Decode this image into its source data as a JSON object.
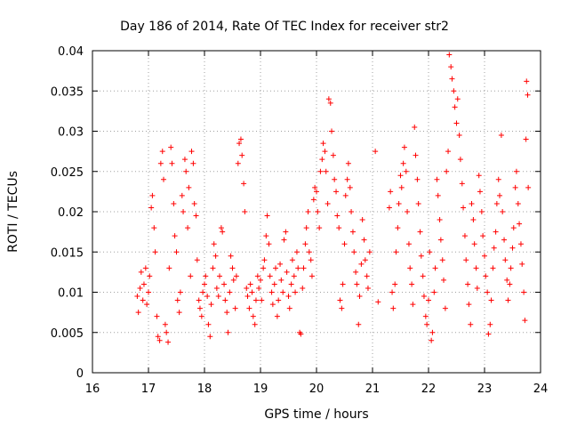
{
  "chart_data": {
    "type": "scatter",
    "title": "Day 186 of 2014, Rate Of TEC Index for receiver str2",
    "xlabel": "GPS time / hours",
    "ylabel": "ROTI / TECUs",
    "xlim": [
      16,
      24
    ],
    "ylim": [
      0,
      0.04
    ],
    "xticks": [
      16,
      17,
      18,
      19,
      20,
      21,
      22,
      23,
      24
    ],
    "xtick_labels": [
      "16",
      "17",
      "18",
      "19",
      "20",
      "21",
      "22",
      "23",
      "24"
    ],
    "yticks": [
      0,
      0.005,
      0.01,
      0.015,
      0.02,
      0.025,
      0.03,
      0.035,
      0.04
    ],
    "ytick_labels": [
      "0",
      "0.005",
      "0.01",
      "0.015",
      "0.02",
      "0.025",
      "0.03",
      "0.035",
      "0.04"
    ],
    "grid": true,
    "marker": "+",
    "series": [
      {
        "name": "ROTI",
        "color": "#ff0000",
        "points": [
          [
            16.8,
            0.0095
          ],
          [
            16.82,
            0.0075
          ],
          [
            16.85,
            0.0105
          ],
          [
            16.87,
            0.0125
          ],
          [
            16.9,
            0.009
          ],
          [
            16.92,
            0.011
          ],
          [
            16.95,
            0.013
          ],
          [
            16.97,
            0.0085
          ],
          [
            17.0,
            0.01
          ],
          [
            17.02,
            0.012
          ],
          [
            17.05,
            0.0205
          ],
          [
            17.07,
            0.022
          ],
          [
            17.1,
            0.018
          ],
          [
            17.12,
            0.015
          ],
          [
            17.15,
            0.007
          ],
          [
            17.17,
            0.0045
          ],
          [
            17.2,
            0.004
          ],
          [
            17.22,
            0.026
          ],
          [
            17.25,
            0.0275
          ],
          [
            17.27,
            0.024
          ],
          [
            17.3,
            0.006
          ],
          [
            17.32,
            0.005
          ],
          [
            17.35,
            0.0038
          ],
          [
            17.37,
            0.013
          ],
          [
            17.4,
            0.028
          ],
          [
            17.42,
            0.026
          ],
          [
            17.45,
            0.021
          ],
          [
            17.47,
            0.017
          ],
          [
            17.5,
            0.015
          ],
          [
            17.52,
            0.009
          ],
          [
            17.55,
            0.0075
          ],
          [
            17.57,
            0.01
          ],
          [
            17.6,
            0.022
          ],
          [
            17.62,
            0.02
          ],
          [
            17.65,
            0.0265
          ],
          [
            17.67,
            0.025
          ],
          [
            17.7,
            0.018
          ],
          [
            17.72,
            0.023
          ],
          [
            17.75,
            0.012
          ],
          [
            17.77,
            0.0275
          ],
          [
            17.8,
            0.026
          ],
          [
            17.82,
            0.021
          ],
          [
            17.85,
            0.0195
          ],
          [
            17.87,
            0.014
          ],
          [
            17.9,
            0.009
          ],
          [
            17.92,
            0.008
          ],
          [
            17.95,
            0.007
          ],
          [
            17.97,
            0.01
          ],
          [
            18.0,
            0.011
          ],
          [
            18.02,
            0.012
          ],
          [
            18.05,
            0.0095
          ],
          [
            18.07,
            0.006
          ],
          [
            18.1,
            0.0045
          ],
          [
            18.12,
            0.0085
          ],
          [
            18.15,
            0.013
          ],
          [
            18.17,
            0.016
          ],
          [
            18.2,
            0.0145
          ],
          [
            18.22,
            0.0105
          ],
          [
            18.25,
            0.0095
          ],
          [
            18.27,
            0.012
          ],
          [
            18.3,
            0.018
          ],
          [
            18.32,
            0.0175
          ],
          [
            18.35,
            0.011
          ],
          [
            18.37,
            0.009
          ],
          [
            18.4,
            0.0075
          ],
          [
            18.42,
            0.005
          ],
          [
            18.45,
            0.01
          ],
          [
            18.47,
            0.0145
          ],
          [
            18.5,
            0.013
          ],
          [
            18.52,
            0.0115
          ],
          [
            18.55,
            0.008
          ],
          [
            18.57,
            0.012
          ],
          [
            18.6,
            0.026
          ],
          [
            18.62,
            0.0285
          ],
          [
            18.65,
            0.029
          ],
          [
            18.67,
            0.027
          ],
          [
            18.7,
            0.0235
          ],
          [
            18.72,
            0.02
          ],
          [
            18.75,
            0.0105
          ],
          [
            18.77,
            0.0095
          ],
          [
            18.8,
            0.008
          ],
          [
            18.82,
            0.011
          ],
          [
            18.85,
            0.01
          ],
          [
            18.87,
            0.007
          ],
          [
            18.9,
            0.006
          ],
          [
            18.92,
            0.009
          ],
          [
            18.95,
            0.012
          ],
          [
            18.97,
            0.0105
          ],
          [
            19.0,
            0.0115
          ],
          [
            19.02,
            0.009
          ],
          [
            19.05,
            0.013
          ],
          [
            19.07,
            0.014
          ],
          [
            19.1,
            0.017
          ],
          [
            19.12,
            0.0195
          ],
          [
            19.15,
            0.016
          ],
          [
            19.17,
            0.012
          ],
          [
            19.2,
            0.01
          ],
          [
            19.22,
            0.0085
          ],
          [
            19.25,
            0.011
          ],
          [
            19.27,
            0.013
          ],
          [
            19.3,
            0.007
          ],
          [
            19.32,
            0.009
          ],
          [
            19.35,
            0.0135
          ],
          [
            19.37,
            0.0115
          ],
          [
            19.4,
            0.01
          ],
          [
            19.42,
            0.0165
          ],
          [
            19.45,
            0.0175
          ],
          [
            19.47,
            0.0125
          ],
          [
            19.5,
            0.0095
          ],
          [
            19.52,
            0.008
          ],
          [
            19.55,
            0.011
          ],
          [
            19.57,
            0.014
          ],
          [
            19.6,
            0.012
          ],
          [
            19.62,
            0.01
          ],
          [
            19.65,
            0.015
          ],
          [
            19.67,
            0.013
          ],
          [
            19.7,
            0.005
          ],
          [
            19.72,
            0.0048
          ],
          [
            19.75,
            0.0105
          ],
          [
            19.77,
            0.013
          ],
          [
            19.8,
            0.016
          ],
          [
            19.82,
            0.018
          ],
          [
            19.85,
            0.02
          ],
          [
            19.87,
            0.015
          ],
          [
            19.9,
            0.014
          ],
          [
            19.92,
            0.012
          ],
          [
            19.95,
            0.0215
          ],
          [
            19.97,
            0.023
          ],
          [
            20.0,
            0.0225
          ],
          [
            20.02,
            0.02
          ],
          [
            20.05,
            0.018
          ],
          [
            20.07,
            0.025
          ],
          [
            20.1,
            0.0265
          ],
          [
            20.12,
            0.0285
          ],
          [
            20.15,
            0.0275
          ],
          [
            20.17,
            0.025
          ],
          [
            20.2,
            0.021
          ],
          [
            20.22,
            0.034
          ],
          [
            20.25,
            0.0335
          ],
          [
            20.27,
            0.03
          ],
          [
            20.3,
            0.027
          ],
          [
            20.32,
            0.024
          ],
          [
            20.35,
            0.0225
          ],
          [
            20.37,
            0.0195
          ],
          [
            20.4,
            0.018
          ],
          [
            20.42,
            0.009
          ],
          [
            20.45,
            0.008
          ],
          [
            20.47,
            0.011
          ],
          [
            20.5,
            0.016
          ],
          [
            20.52,
            0.022
          ],
          [
            20.55,
            0.024
          ],
          [
            20.57,
            0.026
          ],
          [
            20.6,
            0.023
          ],
          [
            20.62,
            0.02
          ],
          [
            20.65,
            0.0175
          ],
          [
            20.67,
            0.015
          ],
          [
            20.7,
            0.0125
          ],
          [
            20.72,
            0.011
          ],
          [
            20.75,
            0.006
          ],
          [
            20.77,
            0.0095
          ],
          [
            20.8,
            0.0135
          ],
          [
            20.82,
            0.019
          ],
          [
            20.85,
            0.0165
          ],
          [
            20.87,
            0.014
          ],
          [
            20.9,
            0.012
          ],
          [
            20.92,
            0.0105
          ],
          [
            20.95,
            0.015
          ],
          [
            21.05,
            0.0275
          ],
          [
            21.1,
            0.0088
          ],
          [
            21.3,
            0.0205
          ],
          [
            21.32,
            0.0225
          ],
          [
            21.35,
            0.01
          ],
          [
            21.37,
            0.008
          ],
          [
            21.4,
            0.011
          ],
          [
            21.42,
            0.015
          ],
          [
            21.45,
            0.018
          ],
          [
            21.47,
            0.021
          ],
          [
            21.5,
            0.0245
          ],
          [
            21.52,
            0.023
          ],
          [
            21.55,
            0.026
          ],
          [
            21.57,
            0.028
          ],
          [
            21.6,
            0.025
          ],
          [
            21.62,
            0.02
          ],
          [
            21.65,
            0.016
          ],
          [
            21.67,
            0.013
          ],
          [
            21.7,
            0.011
          ],
          [
            21.72,
            0.0085
          ],
          [
            21.75,
            0.0305
          ],
          [
            21.77,
            0.027
          ],
          [
            21.8,
            0.024
          ],
          [
            21.82,
            0.021
          ],
          [
            21.85,
            0.0175
          ],
          [
            21.87,
            0.0145
          ],
          [
            21.9,
            0.012
          ],
          [
            21.92,
            0.0095
          ],
          [
            21.95,
            0.007
          ],
          [
            21.97,
            0.006
          ],
          [
            22.0,
            0.009
          ],
          [
            22.02,
            0.015
          ],
          [
            22.05,
            0.004
          ],
          [
            22.07,
            0.005
          ],
          [
            22.1,
            0.01
          ],
          [
            22.12,
            0.013
          ],
          [
            22.15,
            0.024
          ],
          [
            22.17,
            0.022
          ],
          [
            22.2,
            0.019
          ],
          [
            22.22,
            0.0165
          ],
          [
            22.25,
            0.014
          ],
          [
            22.27,
            0.0115
          ],
          [
            22.3,
            0.008
          ],
          [
            22.32,
            0.025
          ],
          [
            22.35,
            0.0275
          ],
          [
            22.37,
            0.0395
          ],
          [
            22.4,
            0.038
          ],
          [
            22.42,
            0.0365
          ],
          [
            22.45,
            0.035
          ],
          [
            22.47,
            0.033
          ],
          [
            22.5,
            0.031
          ],
          [
            22.52,
            0.034
          ],
          [
            22.55,
            0.0295
          ],
          [
            22.57,
            0.0265
          ],
          [
            22.6,
            0.0235
          ],
          [
            22.62,
            0.0205
          ],
          [
            22.65,
            0.017
          ],
          [
            22.67,
            0.014
          ],
          [
            22.7,
            0.011
          ],
          [
            22.72,
            0.0085
          ],
          [
            22.75,
            0.006
          ],
          [
            22.77,
            0.021
          ],
          [
            22.8,
            0.019
          ],
          [
            22.82,
            0.016
          ],
          [
            22.85,
            0.013
          ],
          [
            22.87,
            0.0105
          ],
          [
            22.9,
            0.0245
          ],
          [
            22.92,
            0.0225
          ],
          [
            22.95,
            0.02
          ],
          [
            22.97,
            0.017
          ],
          [
            23.0,
            0.0145
          ],
          [
            23.02,
            0.012
          ],
          [
            23.05,
            0.01
          ],
          [
            23.07,
            0.0048
          ],
          [
            23.1,
            0.006
          ],
          [
            23.12,
            0.009
          ],
          [
            23.15,
            0.013
          ],
          [
            23.17,
            0.0155
          ],
          [
            23.2,
            0.0175
          ],
          [
            23.22,
            0.021
          ],
          [
            23.25,
            0.024
          ],
          [
            23.27,
            0.022
          ],
          [
            23.3,
            0.0295
          ],
          [
            23.32,
            0.02
          ],
          [
            23.35,
            0.0165
          ],
          [
            23.37,
            0.014
          ],
          [
            23.4,
            0.0115
          ],
          [
            23.42,
            0.009
          ],
          [
            23.45,
            0.011
          ],
          [
            23.47,
            0.013
          ],
          [
            23.5,
            0.0155
          ],
          [
            23.52,
            0.018
          ],
          [
            23.55,
            0.023
          ],
          [
            23.57,
            0.025
          ],
          [
            23.6,
            0.021
          ],
          [
            23.62,
            0.0185
          ],
          [
            23.65,
            0.016
          ],
          [
            23.67,
            0.0135
          ],
          [
            23.7,
            0.01
          ],
          [
            23.72,
            0.0065
          ],
          [
            23.74,
            0.029
          ],
          [
            23.75,
            0.0362
          ],
          [
            23.77,
            0.0345
          ],
          [
            23.78,
            0.023
          ]
        ]
      }
    ]
  }
}
